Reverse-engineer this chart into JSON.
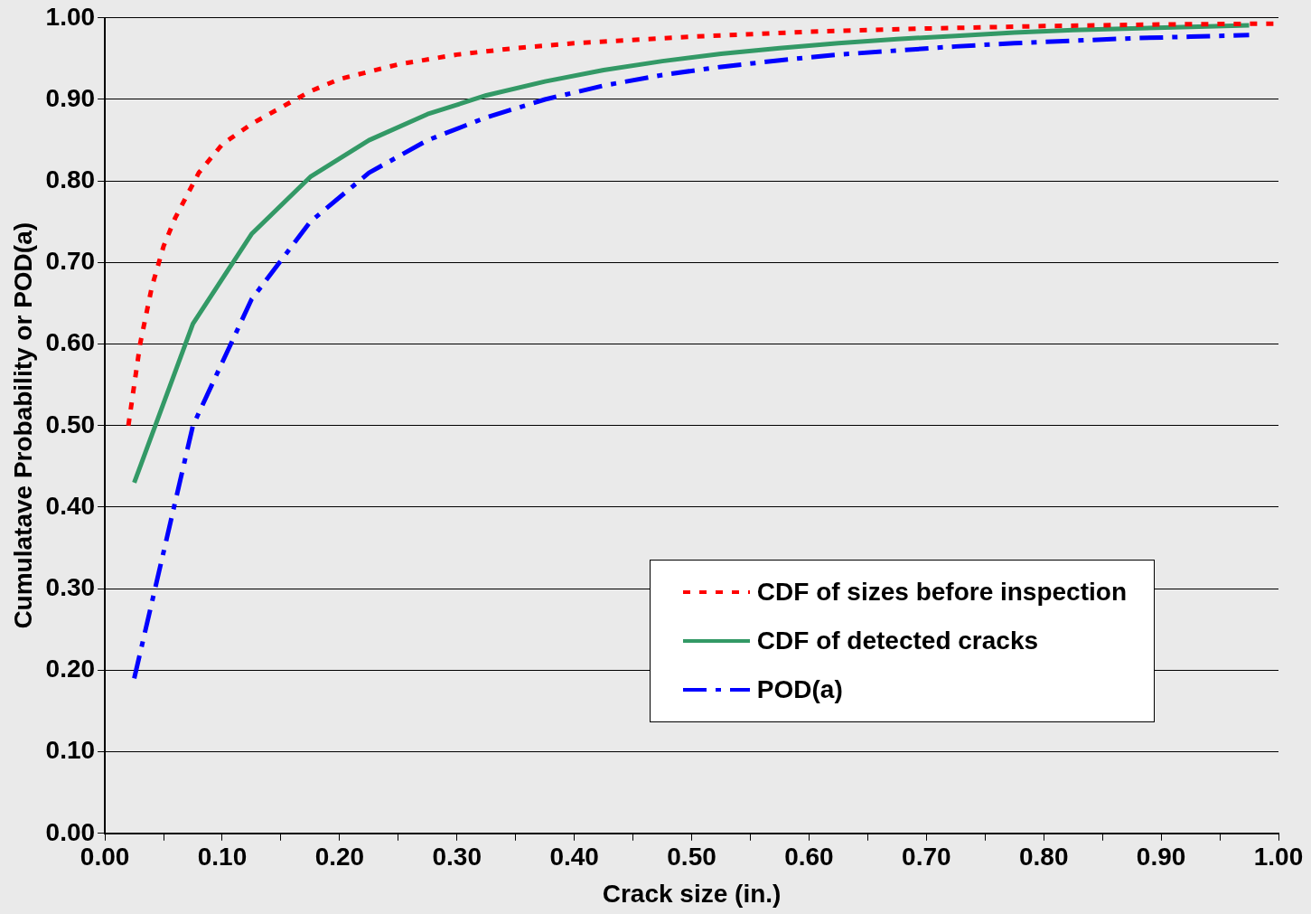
{
  "chart_data": {
    "type": "line",
    "xlabel": "Crack size (in.)",
    "ylabel": "Cumulatave Probability or POD(a)",
    "xlim": [
      0,
      1
    ],
    "xticks": [
      {
        "value": 0,
        "label": "0.00"
      },
      {
        "value": 0.05,
        "label": null
      },
      {
        "value": 0.1,
        "label": "0.10"
      },
      {
        "value": 0.15,
        "label": null
      },
      {
        "value": 0.2,
        "label": "0.20"
      },
      {
        "value": 0.25,
        "label": null
      },
      {
        "value": 0.3,
        "label": "0.30"
      },
      {
        "value": 0.35,
        "label": null
      },
      {
        "value": 0.4,
        "label": "0.40"
      },
      {
        "value": 0.45,
        "label": null
      },
      {
        "value": 0.5,
        "label": "0.50"
      },
      {
        "value": 0.55,
        "label": null
      },
      {
        "value": 0.6,
        "label": "0.60"
      },
      {
        "value": 0.65,
        "label": null
      },
      {
        "value": 0.7,
        "label": "0.70"
      },
      {
        "value": 0.75,
        "label": null
      },
      {
        "value": 0.8,
        "label": "0.80"
      },
      {
        "value": 0.85,
        "label": null
      },
      {
        "value": 0.9,
        "label": "0.90"
      },
      {
        "value": 0.95,
        "label": null
      },
      {
        "value": 1,
        "label": "1.00"
      }
    ],
    "ylim": [
      0,
      1
    ],
    "yticks": [
      {
        "value": 0,
        "label": "0.00"
      },
      {
        "value": 0.1,
        "label": "0.10"
      },
      {
        "value": 0.2,
        "label": "0.20"
      },
      {
        "value": 0.3,
        "label": "0.30"
      },
      {
        "value": 0.4,
        "label": "0.40"
      },
      {
        "value": 0.5,
        "label": "0.50"
      },
      {
        "value": 0.6,
        "label": "0.60"
      },
      {
        "value": 0.7,
        "label": "0.70"
      },
      {
        "value": 0.8,
        "label": "0.80"
      },
      {
        "value": 0.9,
        "label": "0.90"
      },
      {
        "value": 1,
        "label": "1.00"
      }
    ],
    "grid": "y",
    "legend": "bottom right",
    "marker": "none",
    "series": [
      {
        "name": "CDF of sizes before inspection",
        "color": "#ff0000",
        "line_style": "dotted",
        "x": [
          0.02,
          0.03,
          0.04,
          0.05,
          0.06,
          0.08,
          0.1,
          0.125,
          0.15,
          0.175,
          0.2,
          0.25,
          0.3,
          0.35,
          0.4,
          0.5,
          0.6,
          0.7,
          0.8,
          0.9,
          1.0
        ],
        "values": [
          0.5,
          0.6,
          0.67,
          0.72,
          0.755,
          0.81,
          0.845,
          0.87,
          0.89,
          0.91,
          0.925,
          0.943,
          0.955,
          0.963,
          0.969,
          0.977,
          0.983,
          0.987,
          0.99,
          0.992,
          0.993
        ]
      },
      {
        "name": "CDF of detected cracks",
        "color": "#339966",
        "line_style": "solid",
        "x": [
          0.025,
          0.075,
          0.125,
          0.175,
          0.225,
          0.275,
          0.325,
          0.375,
          0.425,
          0.475,
          0.525,
          0.575,
          0.625,
          0.675,
          0.725,
          0.775,
          0.825,
          0.875,
          0.925,
          0.975
        ],
        "values": [
          0.43,
          0.625,
          0.735,
          0.805,
          0.85,
          0.882,
          0.905,
          0.922,
          0.936,
          0.947,
          0.956,
          0.963,
          0.969,
          0.974,
          0.978,
          0.982,
          0.985,
          0.987,
          0.989,
          0.991
        ]
      },
      {
        "name": "POD(a)",
        "color": "#0000ff",
        "line_style": "dashed",
        "x": [
          0.025,
          0.075,
          0.125,
          0.175,
          0.225,
          0.275,
          0.325,
          0.375,
          0.425,
          0.475,
          0.525,
          0.575,
          0.625,
          0.675,
          0.725,
          0.775,
          0.825,
          0.875,
          0.925,
          0.975
        ],
        "values": [
          0.19,
          0.5,
          0.655,
          0.75,
          0.81,
          0.85,
          0.878,
          0.9,
          0.917,
          0.93,
          0.94,
          0.948,
          0.955,
          0.96,
          0.965,
          0.969,
          0.972,
          0.975,
          0.977,
          0.979
        ]
      }
    ]
  }
}
